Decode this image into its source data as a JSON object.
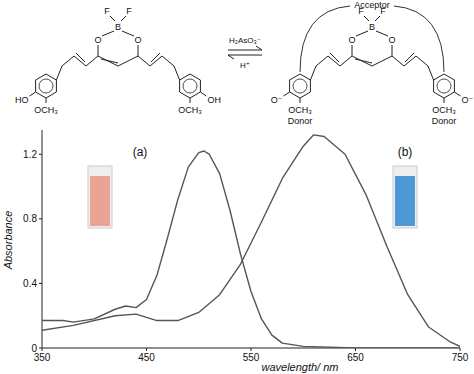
{
  "chart_data": {
    "type": "line",
    "x_label": "wavelength/ nm",
    "y_label": "Absorbance",
    "xlim": [
      350,
      750
    ],
    "xticks": [
      350,
      450,
      550,
      650,
      750
    ],
    "ylim": [
      0,
      1.35
    ],
    "yticks": [
      0,
      0.4,
      0.8,
      1.2
    ],
    "series": [
      {
        "name": "(a)",
        "color": "#555555",
        "x": [
          350,
          360,
          370,
          380,
          400,
          420,
          430,
          440,
          450,
          460,
          470,
          480,
          490,
          500,
          505,
          510,
          520,
          530,
          540,
          550,
          560,
          570,
          580,
          600,
          650,
          750
        ],
        "values": [
          0.17,
          0.17,
          0.17,
          0.16,
          0.18,
          0.24,
          0.26,
          0.25,
          0.3,
          0.45,
          0.68,
          0.92,
          1.12,
          1.21,
          1.22,
          1.2,
          1.08,
          0.85,
          0.58,
          0.35,
          0.18,
          0.08,
          0.03,
          0.01,
          0,
          0
        ]
      },
      {
        "name": "(b)",
        "color": "#555555",
        "x": [
          350,
          380,
          420,
          440,
          460,
          480,
          500,
          520,
          540,
          560,
          580,
          600,
          610,
          620,
          640,
          660,
          680,
          700,
          720,
          740,
          750
        ],
        "values": [
          0.11,
          0.14,
          0.2,
          0.21,
          0.17,
          0.17,
          0.22,
          0.33,
          0.52,
          0.78,
          1.05,
          1.25,
          1.32,
          1.31,
          1.2,
          0.95,
          0.63,
          0.33,
          0.13,
          0.04,
          0.01
        ]
      }
    ]
  },
  "scheme": {
    "left": {
      "F": [
        "F",
        "F"
      ],
      "B": "B",
      "O": [
        "O",
        "O"
      ],
      "groups": [
        "HO",
        "OH"
      ],
      "methoxy": [
        "OCH₃",
        "OCH₃"
      ]
    },
    "right": {
      "F": [
        "F",
        "F"
      ],
      "B": "B",
      "O": [
        "O",
        "O"
      ],
      "groups": [
        "O⁻",
        "O⁻"
      ],
      "methoxy": [
        "OCH₃",
        "OCH₃"
      ],
      "acceptor": "Acceptor",
      "donors": [
        "Donor",
        "Donor"
      ]
    },
    "reagents": {
      "forward": "H₂AsO₃⁻",
      "reverse": "H⁺"
    }
  }
}
